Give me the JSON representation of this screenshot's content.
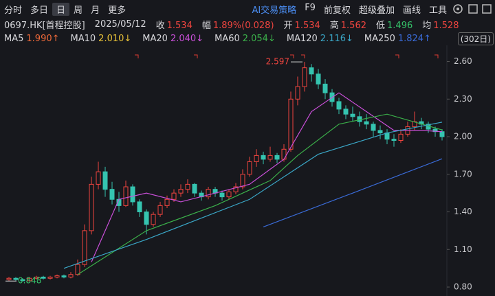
{
  "toolbar": {
    "left": [
      "分时",
      "多日",
      "日",
      "周",
      "月",
      "更多"
    ],
    "selected": 2,
    "ai": "AI交易策略",
    "right": [
      "F9",
      "前复权",
      "超级叠加",
      "画线",
      "工具"
    ]
  },
  "quote": {
    "code": "0697.HK[首程控股]",
    "date": "2025/05/12",
    "items": [
      {
        "label": "收",
        "value": "1.534",
        "color": "#f0453f"
      },
      {
        "label": "幅",
        "value": "1.89%(0.028)",
        "color": "#f0453f"
      },
      {
        "label": "开",
        "value": "1.534",
        "color": "#f0453f"
      },
      {
        "label": "高",
        "value": "1.562",
        "color": "#f0453f"
      },
      {
        "label": "低",
        "value": "1.496",
        "color": "#35c46a"
      },
      {
        "label": "均",
        "value": "1.528",
        "color": "#f0453f"
      }
    ]
  },
  "ma_legend": {
    "period": "(302日)",
    "items": [
      {
        "name": "MA5",
        "value": "1.990",
        "arrow": "↑",
        "color": "#f06a3a"
      },
      {
        "name": "MA10",
        "value": "2.010",
        "arrow": "↓",
        "color": "#e8c238"
      },
      {
        "name": "MA20",
        "value": "2.040",
        "arrow": "↓",
        "color": "#c94fd8",
        "x": [
          12,
          16,
          20,
          25,
          30,
          35,
          40,
          44,
          48,
          52,
          56,
          60,
          63
        ],
        "values": [
          1.0,
          1.5,
          1.55,
          1.48,
          1.55,
          1.62,
          1.82,
          2.2,
          2.35,
          2.2,
          2.05,
          2.05,
          2.04
        ]
      },
      {
        "name": "MA60",
        "value": "2.054",
        "arrow": "↓",
        "color": "#3bb04a",
        "x": [
          10,
          20,
          30,
          38,
          42,
          48,
          55,
          63
        ],
        "values": [
          0.9,
          1.25,
          1.45,
          1.65,
          1.85,
          2.1,
          2.18,
          2.054
        ]
      },
      {
        "name": "MA120",
        "value": "2.116",
        "arrow": "↓",
        "color": "#3aa6c6",
        "x": [
          8,
          20,
          35,
          45,
          55,
          63
        ],
        "values": [
          0.95,
          1.18,
          1.5,
          1.86,
          2.03,
          2.116
        ]
      },
      {
        "name": "MA250",
        "value": "1.824",
        "arrow": "↑",
        "color": "#3a6bd8",
        "x": [
          37,
          50,
          63
        ],
        "values": [
          1.28,
          1.55,
          1.824
        ]
      }
    ]
  },
  "chart": {
    "ylim": [
      0.8,
      2.7
    ],
    "yticks": [
      {
        "value": 2.6,
        "label": "2.60"
      },
      {
        "value": 2.3,
        "label": "2.30"
      },
      {
        "value": 2.0,
        "label": "2.00"
      },
      {
        "value": 1.7,
        "label": "1.70"
      },
      {
        "value": 1.4,
        "label": "1.40"
      },
      {
        "value": 1.1,
        "label": "1.10"
      },
      {
        "value": 0.8,
        "label": "0.80"
      }
    ],
    "up_color": "#f0453f",
    "down_color": "#35c4b0",
    "high": {
      "index": 43,
      "label": "2.597"
    },
    "low": {
      "index": 2,
      "label": "0.848"
    },
    "candles": [
      [
        0.86,
        0.88,
        0.85,
        0.87
      ],
      [
        0.87,
        0.88,
        0.85,
        0.86
      ],
      [
        0.86,
        0.87,
        0.848,
        0.85
      ],
      [
        0.85,
        0.88,
        0.85,
        0.87
      ],
      [
        0.87,
        0.89,
        0.86,
        0.88
      ],
      [
        0.88,
        0.89,
        0.86,
        0.87
      ],
      [
        0.87,
        0.89,
        0.86,
        0.88
      ],
      [
        0.88,
        0.9,
        0.87,
        0.89
      ],
      [
        0.89,
        0.9,
        0.87,
        0.88
      ],
      [
        0.88,
        0.92,
        0.87,
        0.9
      ],
      [
        0.9,
        1.02,
        0.89,
        0.98
      ],
      [
        0.98,
        1.3,
        0.96,
        1.25
      ],
      [
        1.25,
        1.68,
        1.22,
        1.62
      ],
      [
        1.62,
        1.8,
        1.58,
        1.72
      ],
      [
        1.72,
        1.76,
        1.52,
        1.58
      ],
      [
        1.58,
        1.64,
        1.46,
        1.5
      ],
      [
        1.5,
        1.56,
        1.4,
        1.45
      ],
      [
        1.45,
        1.65,
        1.44,
        1.6
      ],
      [
        1.6,
        1.62,
        1.45,
        1.48
      ],
      [
        1.48,
        1.5,
        1.36,
        1.4
      ],
      [
        1.4,
        1.42,
        1.22,
        1.3
      ],
      [
        1.3,
        1.4,
        1.28,
        1.38
      ],
      [
        1.38,
        1.48,
        1.36,
        1.45
      ],
      [
        1.45,
        1.53,
        1.43,
        1.5
      ],
      [
        1.5,
        1.58,
        1.48,
        1.55
      ],
      [
        1.55,
        1.62,
        1.52,
        1.58
      ],
      [
        1.58,
        1.66,
        1.55,
        1.62
      ],
      [
        1.62,
        1.63,
        1.52,
        1.55
      ],
      [
        1.55,
        1.57,
        1.49,
        1.52
      ],
      [
        1.52,
        1.6,
        1.5,
        1.58
      ],
      [
        1.58,
        1.6,
        1.52,
        1.55
      ],
      [
        1.55,
        1.57,
        1.49,
        1.52
      ],
      [
        1.52,
        1.58,
        1.5,
        1.56
      ],
      [
        1.56,
        1.63,
        1.54,
        1.6
      ],
      [
        1.6,
        1.74,
        1.58,
        1.7
      ],
      [
        1.7,
        1.84,
        1.68,
        1.8
      ],
      [
        1.8,
        1.9,
        1.76,
        1.85
      ],
      [
        1.85,
        1.88,
        1.78,
        1.82
      ],
      [
        1.82,
        1.92,
        1.8,
        1.85
      ],
      [
        1.85,
        1.87,
        1.79,
        1.82
      ],
      [
        1.82,
        1.94,
        1.8,
        1.9
      ],
      [
        1.9,
        2.36,
        1.88,
        2.3
      ],
      [
        2.3,
        2.48,
        2.25,
        2.4
      ],
      [
        2.4,
        2.597,
        2.36,
        2.55
      ],
      [
        2.55,
        2.58,
        2.44,
        2.5
      ],
      [
        2.5,
        2.54,
        2.38,
        2.42
      ],
      [
        2.42,
        2.46,
        2.3,
        2.35
      ],
      [
        2.35,
        2.38,
        2.24,
        2.28
      ],
      [
        2.28,
        2.31,
        2.18,
        2.22
      ],
      [
        2.22,
        2.25,
        2.14,
        2.18
      ],
      [
        2.18,
        2.24,
        2.12,
        2.16
      ],
      [
        2.16,
        2.2,
        2.08,
        2.12
      ],
      [
        2.12,
        2.18,
        2.06,
        2.1
      ],
      [
        2.1,
        2.12,
        2.0,
        2.05
      ],
      [
        2.05,
        2.09,
        1.98,
        2.03
      ],
      [
        2.03,
        2.06,
        1.94,
        1.98
      ],
      [
        1.98,
        2.02,
        1.92,
        1.97
      ],
      [
        1.97,
        2.06,
        1.95,
        2.02
      ],
      [
        2.02,
        2.12,
        2.0,
        2.08
      ],
      [
        2.08,
        2.2,
        2.05,
        2.12
      ],
      [
        2.12,
        2.15,
        2.06,
        2.1
      ],
      [
        2.1,
        2.12,
        2.03,
        2.06
      ],
      [
        2.06,
        2.08,
        2.0,
        2.04
      ],
      [
        2.04,
        2.06,
        1.97,
        2.0
      ]
    ]
  }
}
